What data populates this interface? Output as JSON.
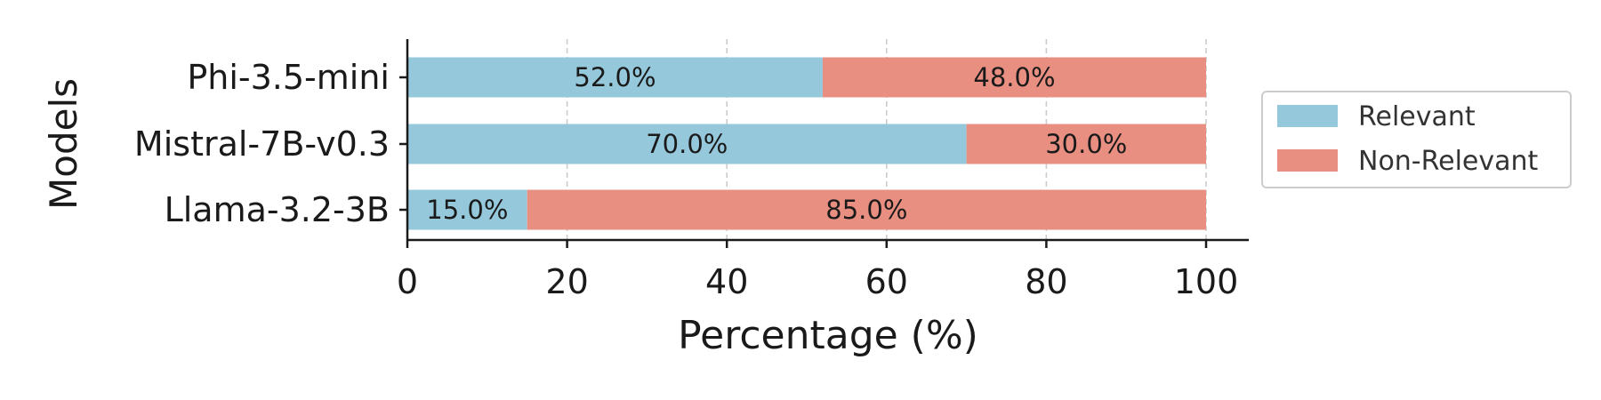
{
  "chart_data": {
    "type": "bar",
    "orientation": "horizontal",
    "stacked": true,
    "categories": [
      "Phi-3.5-mini",
      "Mistral-7B-v0.3",
      "Llama-3.2-3B"
    ],
    "series": [
      {
        "name": "Relevant",
        "values": [
          52.0,
          70.0,
          15.0
        ],
        "color": "#96c8dc"
      },
      {
        "name": "Non-Relevant",
        "values": [
          48.0,
          30.0,
          85.0
        ],
        "color": "#e88f82"
      }
    ],
    "data_labels": [
      [
        "52.0%",
        "70.0%",
        "15.0%"
      ],
      [
        "48.0%",
        "30.0%",
        "85.0%"
      ]
    ],
    "xlabel": "Percentage (%)",
    "ylabel": "Models",
    "xlim": [
      0,
      105
    ],
    "xticks": [
      "0",
      "20",
      "40",
      "60",
      "80",
      "100"
    ],
    "grid": "x, dashed",
    "legend_position": "right"
  }
}
